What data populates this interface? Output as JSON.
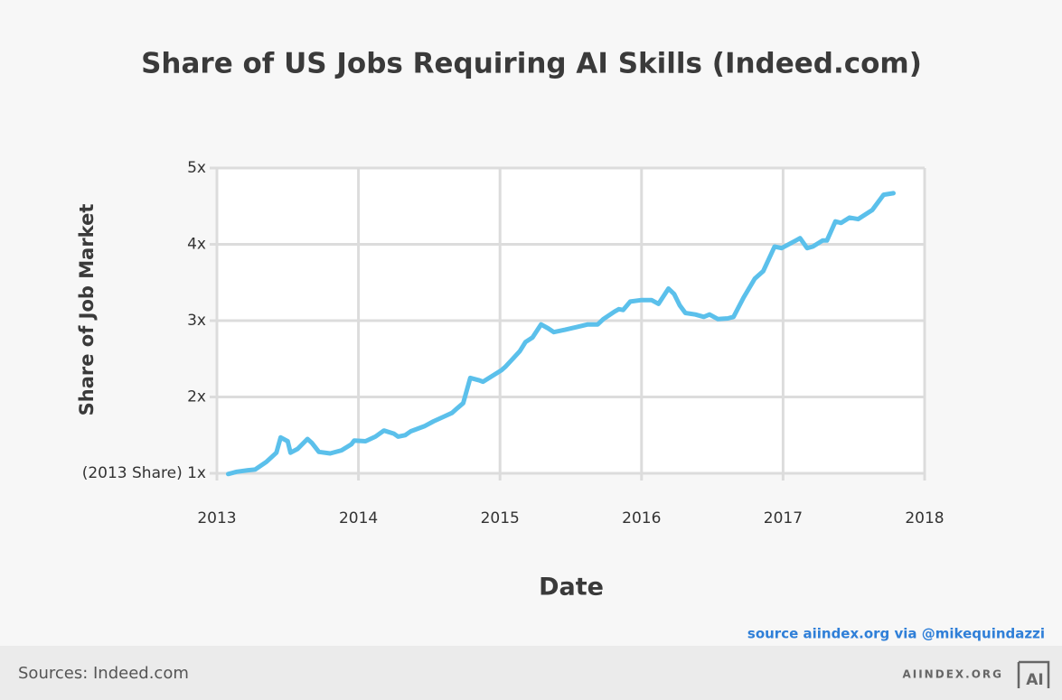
{
  "chart_data": {
    "type": "line",
    "title": "Share of US Jobs Requiring AI Skills (Indeed.com)",
    "x_label": "Date",
    "y_label": "Share of Job Market",
    "annotation": "source aiindex.org via @mikequindazzi",
    "color": "#5bc0eb",
    "grid": true,
    "x": [
      2013.08,
      2013.14,
      2013.22,
      2013.27,
      2013.35,
      2013.42,
      2013.45,
      2013.5,
      2013.52,
      2013.57,
      2013.64,
      2013.67,
      2013.72,
      2013.8,
      2013.88,
      2013.95,
      2013.97,
      2014.05,
      2014.12,
      2014.18,
      2014.25,
      2014.28,
      2014.33,
      2014.37,
      2014.47,
      2014.53,
      2014.6,
      2014.66,
      2014.69,
      2014.74,
      2014.79,
      2014.85,
      2014.88,
      2014.95,
      2015.01,
      2015.04,
      2015.09,
      2015.14,
      2015.18,
      2015.23,
      2015.29,
      2015.34,
      2015.38,
      2015.46,
      2015.55,
      2015.62,
      2015.69,
      2015.73,
      2015.81,
      2015.84,
      2015.87,
      2015.92,
      2016.0,
      2016.07,
      2016.12,
      2016.19,
      2016.23,
      2016.27,
      2016.31,
      2016.38,
      2016.44,
      2016.48,
      2016.54,
      2016.61,
      2016.65,
      2016.72,
      2016.8,
      2016.86,
      2016.94,
      2016.99,
      2017.09,
      2017.12,
      2017.17,
      2017.21,
      2017.28,
      2017.31,
      2017.37,
      2017.41,
      2017.47,
      2017.53,
      2017.63,
      2017.71,
      2017.78
    ],
    "values": [
      0.99,
      1.02,
      1.04,
      1.05,
      1.15,
      1.27,
      1.47,
      1.42,
      1.27,
      1.32,
      1.45,
      1.4,
      1.28,
      1.26,
      1.3,
      1.38,
      1.43,
      1.42,
      1.48,
      1.56,
      1.52,
      1.48,
      1.5,
      1.55,
      1.62,
      1.68,
      1.74,
      1.79,
      1.84,
      1.92,
      2.25,
      2.22,
      2.2,
      2.28,
      2.35,
      2.4,
      2.5,
      2.6,
      2.72,
      2.78,
      2.95,
      2.9,
      2.85,
      2.88,
      2.92,
      2.95,
      2.95,
      3.02,
      3.12,
      3.15,
      3.14,
      3.25,
      3.27,
      3.27,
      3.22,
      3.42,
      3.35,
      3.2,
      3.1,
      3.08,
      3.05,
      3.08,
      3.02,
      3.03,
      3.05,
      3.3,
      3.55,
      3.65,
      3.97,
      3.95,
      4.05,
      4.08,
      3.95,
      3.97,
      4.05,
      4.05,
      4.3,
      4.28,
      4.35,
      4.33,
      4.45,
      4.65,
      4.67
    ],
    "xlim": [
      2013,
      2018
    ],
    "xticks": [
      2013,
      2014,
      2015,
      2016,
      2017,
      2018
    ],
    "ylim": [
      1,
      5
    ],
    "yticks": [
      {
        "value": 1,
        "label": "(2013 Share) 1x"
      },
      {
        "value": 2,
        "label": "2x"
      },
      {
        "value": 3,
        "label": "3x"
      },
      {
        "value": 4,
        "label": "4x"
      },
      {
        "value": 5,
        "label": "5x"
      }
    ]
  },
  "footer": {
    "sources": "Sources: Indeed.com",
    "brand": "AIINDEX.ORG",
    "logo": "AI"
  }
}
